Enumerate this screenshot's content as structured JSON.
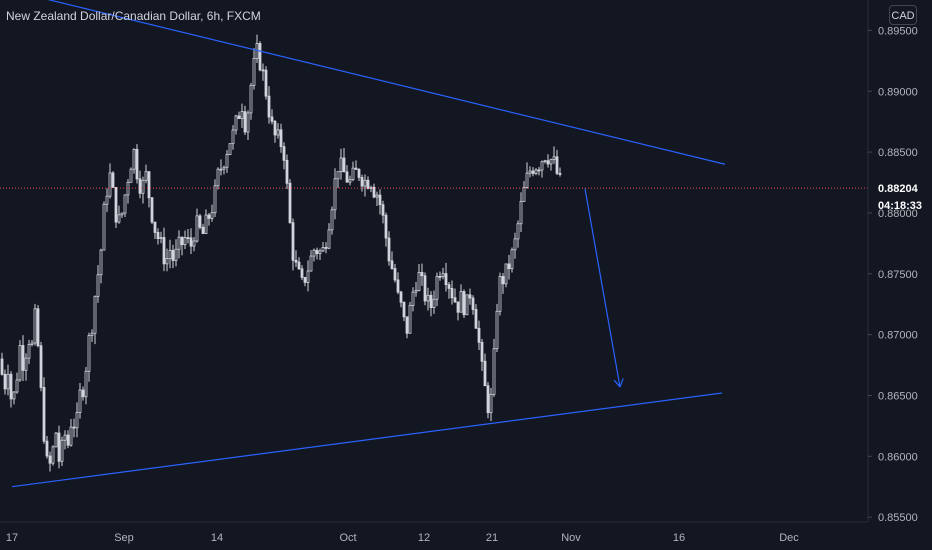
{
  "header": {
    "title": "New Zealand Dollar/Canadian Dollar, 6h, FXCM",
    "currency": "CAD"
  },
  "price_scale": {
    "last_price": "0.88204",
    "countdown": "04:18:33"
  },
  "colors": {
    "background": "#131722",
    "candle": "#d1d4dc",
    "trendline": "#2962ff",
    "last_price_line": "#e2455c",
    "axis_text": "#b2b5be"
  },
  "chart_data": {
    "type": "candlestick",
    "symbol": "NZDCAD",
    "interval": "6h",
    "y_ticks": [
      "0.85500",
      "0.86000",
      "0.86500",
      "0.87000",
      "0.87500",
      "0.88000",
      "0.88500",
      "0.89000",
      "0.89500"
    ],
    "x_ticks": [
      "17",
      "Sep",
      "14",
      "Oct",
      "12",
      "21",
      "Nov",
      "16",
      "Dec"
    ],
    "ylim": [
      0.8546,
      0.8975
    ],
    "close_path": [
      [
        0,
        0.868
      ],
      [
        4,
        0.8655
      ],
      [
        8,
        0.8675
      ],
      [
        12,
        0.864
      ],
      [
        16,
        0.866
      ],
      [
        20,
        0.869
      ],
      [
        24,
        0.8675
      ],
      [
        28,
        0.87
      ],
      [
        32,
        0.869
      ],
      [
        36,
        0.872
      ],
      [
        39,
        0.8675
      ],
      [
        42,
        0.864
      ],
      [
        45,
        0.861
      ],
      [
        48,
        0.8585
      ],
      [
        52,
        0.86
      ],
      [
        56,
        0.862
      ],
      [
        60,
        0.859
      ],
      [
        64,
        0.862
      ],
      [
        68,
        0.861
      ],
      [
        72,
        0.8635
      ],
      [
        76,
        0.862
      ],
      [
        80,
        0.865
      ],
      [
        84,
        0.866
      ],
      [
        88,
        0.869
      ],
      [
        92,
        0.871
      ],
      [
        96,
        0.874
      ],
      [
        100,
        0.876
      ],
      [
        104,
        0.88
      ],
      [
        107,
        0.882
      ],
      [
        110,
        0.883
      ],
      [
        114,
        0.881
      ],
      [
        118,
        0.879
      ],
      [
        122,
        0.88
      ],
      [
        126,
        0.882
      ],
      [
        130,
        0.884
      ],
      [
        134,
        0.885
      ],
      [
        138,
        0.883
      ],
      [
        142,
        0.882
      ],
      [
        146,
        0.883
      ],
      [
        150,
        0.881
      ],
      [
        154,
        0.879
      ],
      [
        158,
        0.878
      ],
      [
        162,
        0.877
      ],
      [
        166,
        0.876
      ],
      [
        170,
        0.877
      ],
      [
        174,
        0.876
      ],
      [
        178,
        0.877
      ],
      [
        182,
        0.8775
      ],
      [
        186,
        0.878
      ],
      [
        190,
        0.877
      ],
      [
        194,
        0.8785
      ],
      [
        198,
        0.879
      ],
      [
        202,
        0.878
      ],
      [
        206,
        0.879
      ],
      [
        210,
        0.88
      ],
      [
        214,
        0.881
      ],
      [
        218,
        0.883
      ],
      [
        222,
        0.884
      ],
      [
        226,
        0.885
      ],
      [
        230,
        0.886
      ],
      [
        234,
        0.8865
      ],
      [
        238,
        0.888
      ],
      [
        242,
        0.889
      ],
      [
        246,
        0.887
      ],
      [
        250,
        0.89
      ],
      [
        254,
        0.892
      ],
      [
        258,
        0.8935
      ],
      [
        261,
        0.892
      ],
      [
        264,
        0.891
      ],
      [
        268,
        0.889
      ],
      [
        272,
        0.887
      ],
      [
        276,
        0.886
      ],
      [
        280,
        0.886
      ],
      [
        284,
        0.885
      ],
      [
        287,
        0.882
      ],
      [
        290,
        0.879
      ],
      [
        294,
        0.876
      ],
      [
        298,
        0.875
      ],
      [
        302,
        0.874
      ],
      [
        306,
        0.875
      ],
      [
        310,
        0.876
      ],
      [
        314,
        0.877
      ],
      [
        318,
        0.877
      ],
      [
        322,
        0.8765
      ],
      [
        326,
        0.878
      ],
      [
        330,
        0.88
      ],
      [
        334,
        0.882
      ],
      [
        338,
        0.884
      ],
      [
        342,
        0.8835
      ],
      [
        346,
        0.883
      ],
      [
        350,
        0.8825
      ],
      [
        354,
        0.883
      ],
      [
        358,
        0.8835
      ],
      [
        362,
        0.883
      ],
      [
        366,
        0.8825
      ],
      [
        370,
        0.883
      ],
      [
        374,
        0.882
      ],
      [
        378,
        0.8815
      ],
      [
        382,
        0.88
      ],
      [
        386,
        0.878
      ],
      [
        390,
        0.876
      ],
      [
        394,
        0.875
      ],
      [
        398,
        0.873
      ],
      [
        402,
        0.872
      ],
      [
        406,
        0.87
      ],
      [
        410,
        0.872
      ],
      [
        414,
        0.874
      ],
      [
        418,
        0.875
      ],
      [
        422,
        0.874
      ],
      [
        426,
        0.873
      ],
      [
        430,
        0.872
      ],
      [
        434,
        0.8735
      ],
      [
        438,
        0.875
      ],
      [
        442,
        0.876
      ],
      [
        446,
        0.875
      ],
      [
        450,
        0.874
      ],
      [
        454,
        0.873
      ],
      [
        458,
        0.8725
      ],
      [
        462,
        0.873
      ],
      [
        466,
        0.872
      ],
      [
        470,
        0.8735
      ],
      [
        474,
        0.8725
      ],
      [
        478,
        0.87
      ],
      [
        482,
        0.867
      ],
      [
        486,
        0.865
      ],
      [
        490,
        0.8635
      ],
      [
        494,
        0.868
      ],
      [
        498,
        0.874
      ],
      [
        502,
        0.8745
      ],
      [
        506,
        0.875
      ],
      [
        510,
        0.876
      ],
      [
        514,
        0.877
      ],
      [
        518,
        0.879
      ],
      [
        522,
        0.881
      ],
      [
        526,
        0.8825
      ],
      [
        530,
        0.8835
      ],
      [
        534,
        0.884
      ],
      [
        538,
        0.884
      ],
      [
        542,
        0.8845
      ],
      [
        546,
        0.885
      ],
      [
        550,
        0.8845
      ],
      [
        554,
        0.884
      ],
      [
        558,
        0.883
      ],
      [
        561,
        0.8822
      ]
    ],
    "trendlines": [
      {
        "from": [
          10,
          0.8983
        ],
        "to": [
          725,
          0.884
        ]
      },
      {
        "from": [
          12,
          0.8575
        ],
        "to": [
          722,
          0.8652
        ]
      }
    ],
    "projection_arrow": {
      "from": [
        585,
        0.882
      ],
      "to": [
        620,
        0.8657
      ]
    },
    "last_price_value": 0.88204
  }
}
